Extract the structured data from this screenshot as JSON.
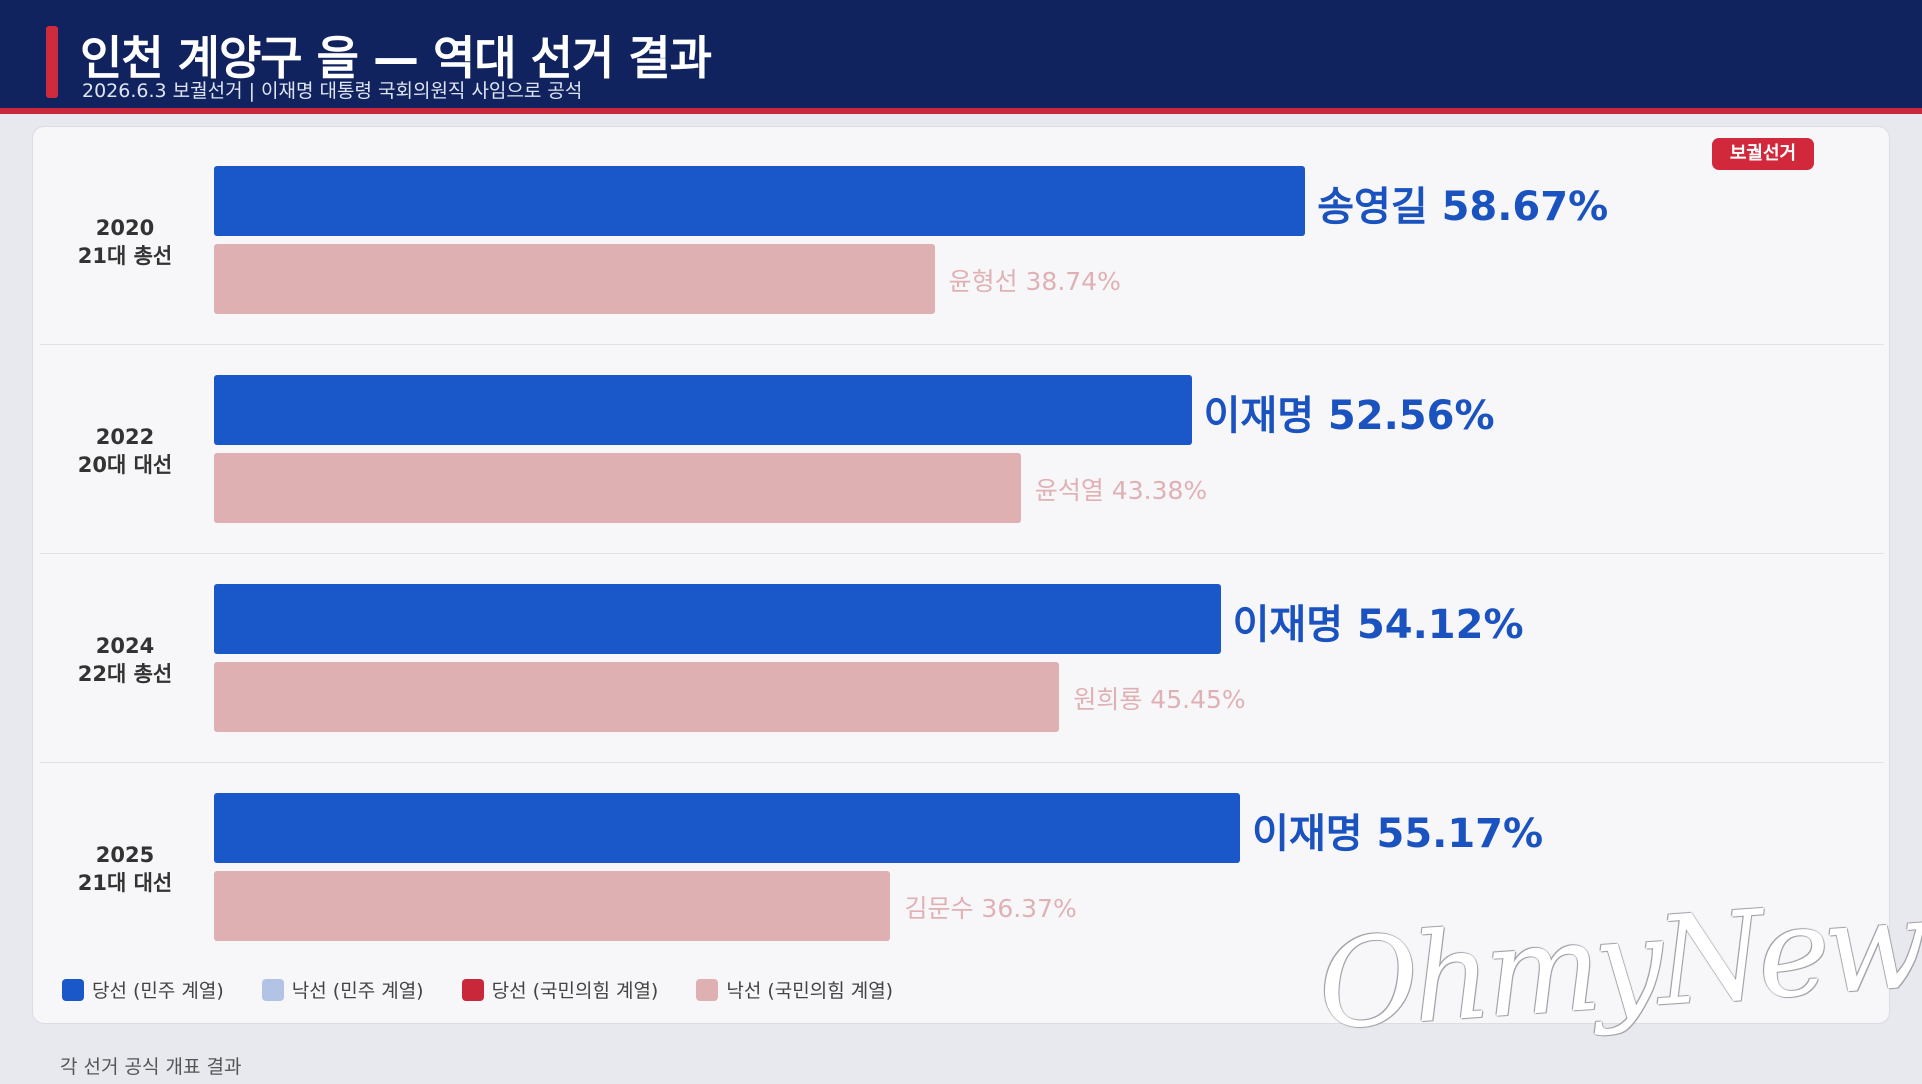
{
  "header": {
    "title": "인천 계양구 을  —  역대 선거 결과",
    "subtitle": "2026.6.3 보궐선거 | 이재명 대통령 국회의원직 사임으로 공석"
  },
  "badge": "보궐선거",
  "colors": {
    "header_bg": "#11235f",
    "accent": "#d02b3c",
    "win_dem": "#1a57c8",
    "lose_dem": "#b3c3e6",
    "win_ppp": "#c8283a",
    "lose_ppp": "#deb0b2"
  },
  "chart_data": {
    "type": "bar",
    "orientation": "horizontal",
    "xlim": [
      0,
      100
    ],
    "groups": [
      {
        "year": "2020",
        "election": "21대 총선",
        "winner": {
          "name": "송영길",
          "pct": 58.67,
          "label": "58.67%",
          "camp": "민주"
        },
        "loser": {
          "name": "윤형선",
          "pct": 38.74,
          "label": "38.74%",
          "camp": "국민의힘"
        }
      },
      {
        "year": "2022",
        "election": "20대 대선",
        "winner": {
          "name": "이재명",
          "pct": 52.56,
          "label": "52.56%",
          "camp": "민주"
        },
        "loser": {
          "name": "윤석열",
          "pct": 43.38,
          "label": "43.38%",
          "camp": "국민의힘"
        }
      },
      {
        "year": "2024",
        "election": "22대 총선",
        "winner": {
          "name": "이재명",
          "pct": 54.12,
          "label": "54.12%",
          "camp": "민주"
        },
        "loser": {
          "name": "원희룡",
          "pct": 45.45,
          "label": "45.45%",
          "camp": "국민의힘"
        }
      },
      {
        "year": "2025",
        "election": "21대 대선",
        "winner": {
          "name": "이재명",
          "pct": 55.17,
          "label": "55.17%",
          "camp": "민주"
        },
        "loser": {
          "name": "김문수",
          "pct": 36.37,
          "label": "36.37%",
          "camp": "국민의힘"
        }
      }
    ],
    "legend": [
      {
        "label": "당선 (민주 계열)",
        "color": "#1a57c8"
      },
      {
        "label": "낙선 (민주 계열)",
        "color": "#b3c3e6"
      },
      {
        "label": "당선 (국민의힘 계열)",
        "color": "#c8283a"
      },
      {
        "label": "낙선 (국민의힘 계열)",
        "color": "#deb0b2"
      }
    ]
  },
  "footer": "각 선거 공식 개표 결과",
  "watermark": "OhmyNews"
}
